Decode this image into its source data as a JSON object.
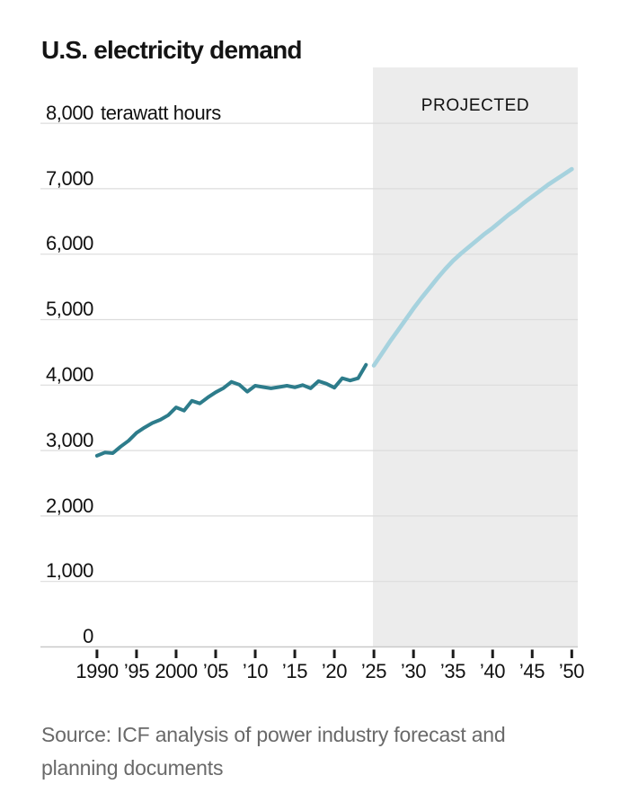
{
  "title": "U.S. electricity demand",
  "projected_label": "PROJECTED",
  "y_axis": {
    "unit_label": "terawatt hours",
    "labels": [
      "8,000",
      "7,000",
      "6,000",
      "5,000",
      "4,000",
      "3,000",
      "2,000",
      "1,000",
      "0"
    ]
  },
  "x_axis": {
    "labels": [
      "1990",
      "’95",
      "2000",
      "’05",
      "’10",
      "’15",
      "’20",
      "’25",
      "’30",
      "’35",
      "’40",
      "’45",
      "’50"
    ]
  },
  "source": {
    "line1": "Source: ICF analysis of power industry forecast and",
    "line2": "planning documents"
  },
  "colors": {
    "historical_line": "#2d7c8b",
    "projected_line": "#a6d2de",
    "projected_region_bg": "#ececec",
    "gridline": "#dcdcdc",
    "axis_line": "#c9c9c9",
    "tick": "#1a1a1a",
    "title_text": "#141414",
    "axis_text": "#111111",
    "source_text": "#696969"
  },
  "chart_data": {
    "type": "line",
    "title": "U.S. electricity demand",
    "ylabel": "terawatt hours",
    "xlabel": "",
    "ylim": [
      0,
      8000
    ],
    "xlim": [
      1990,
      2050
    ],
    "grid": "horizontal",
    "legend": "none",
    "y_ticks": [
      0,
      1000,
      2000,
      3000,
      4000,
      5000,
      6000,
      7000,
      8000
    ],
    "x_ticks": [
      1990,
      1995,
      2000,
      2005,
      2010,
      2015,
      2020,
      2025,
      2030,
      2035,
      2040,
      2045,
      2050
    ],
    "projected_region": {
      "start": 2025,
      "end": 2050,
      "label": "PROJECTED"
    },
    "series": [
      {
        "name": "historical",
        "color": "#2d7c8b",
        "x": [
          1990,
          1991,
          1992,
          1993,
          1994,
          1995,
          1996,
          1997,
          1998,
          1999,
          2000,
          2001,
          2002,
          2003,
          2004,
          2005,
          2006,
          2007,
          2008,
          2009,
          2010,
          2011,
          2012,
          2013,
          2014,
          2015,
          2016,
          2017,
          2018,
          2019,
          2020,
          2021,
          2022,
          2023,
          2024
        ],
        "values": [
          2920,
          2970,
          2960,
          3060,
          3150,
          3270,
          3350,
          3420,
          3470,
          3540,
          3660,
          3610,
          3760,
          3720,
          3810,
          3890,
          3955,
          4050,
          4005,
          3900,
          3990,
          3970,
          3950,
          3970,
          3990,
          3965,
          4000,
          3950,
          4060,
          4020,
          3960,
          4105,
          4070,
          4105,
          4310
        ]
      },
      {
        "name": "projected",
        "color": "#a6d2de",
        "x": [
          2025,
          2026,
          2027,
          2028,
          2029,
          2030,
          2031,
          2032,
          2033,
          2034,
          2035,
          2036,
          2037,
          2038,
          2039,
          2040,
          2041,
          2042,
          2043,
          2044,
          2045,
          2046,
          2047,
          2048,
          2049,
          2050
        ],
        "values": [
          4300,
          4480,
          4660,
          4830,
          5000,
          5170,
          5330,
          5480,
          5630,
          5770,
          5900,
          6010,
          6110,
          6210,
          6310,
          6400,
          6500,
          6600,
          6690,
          6790,
          6880,
          6970,
          7060,
          7140,
          7220,
          7300
        ]
      }
    ]
  }
}
